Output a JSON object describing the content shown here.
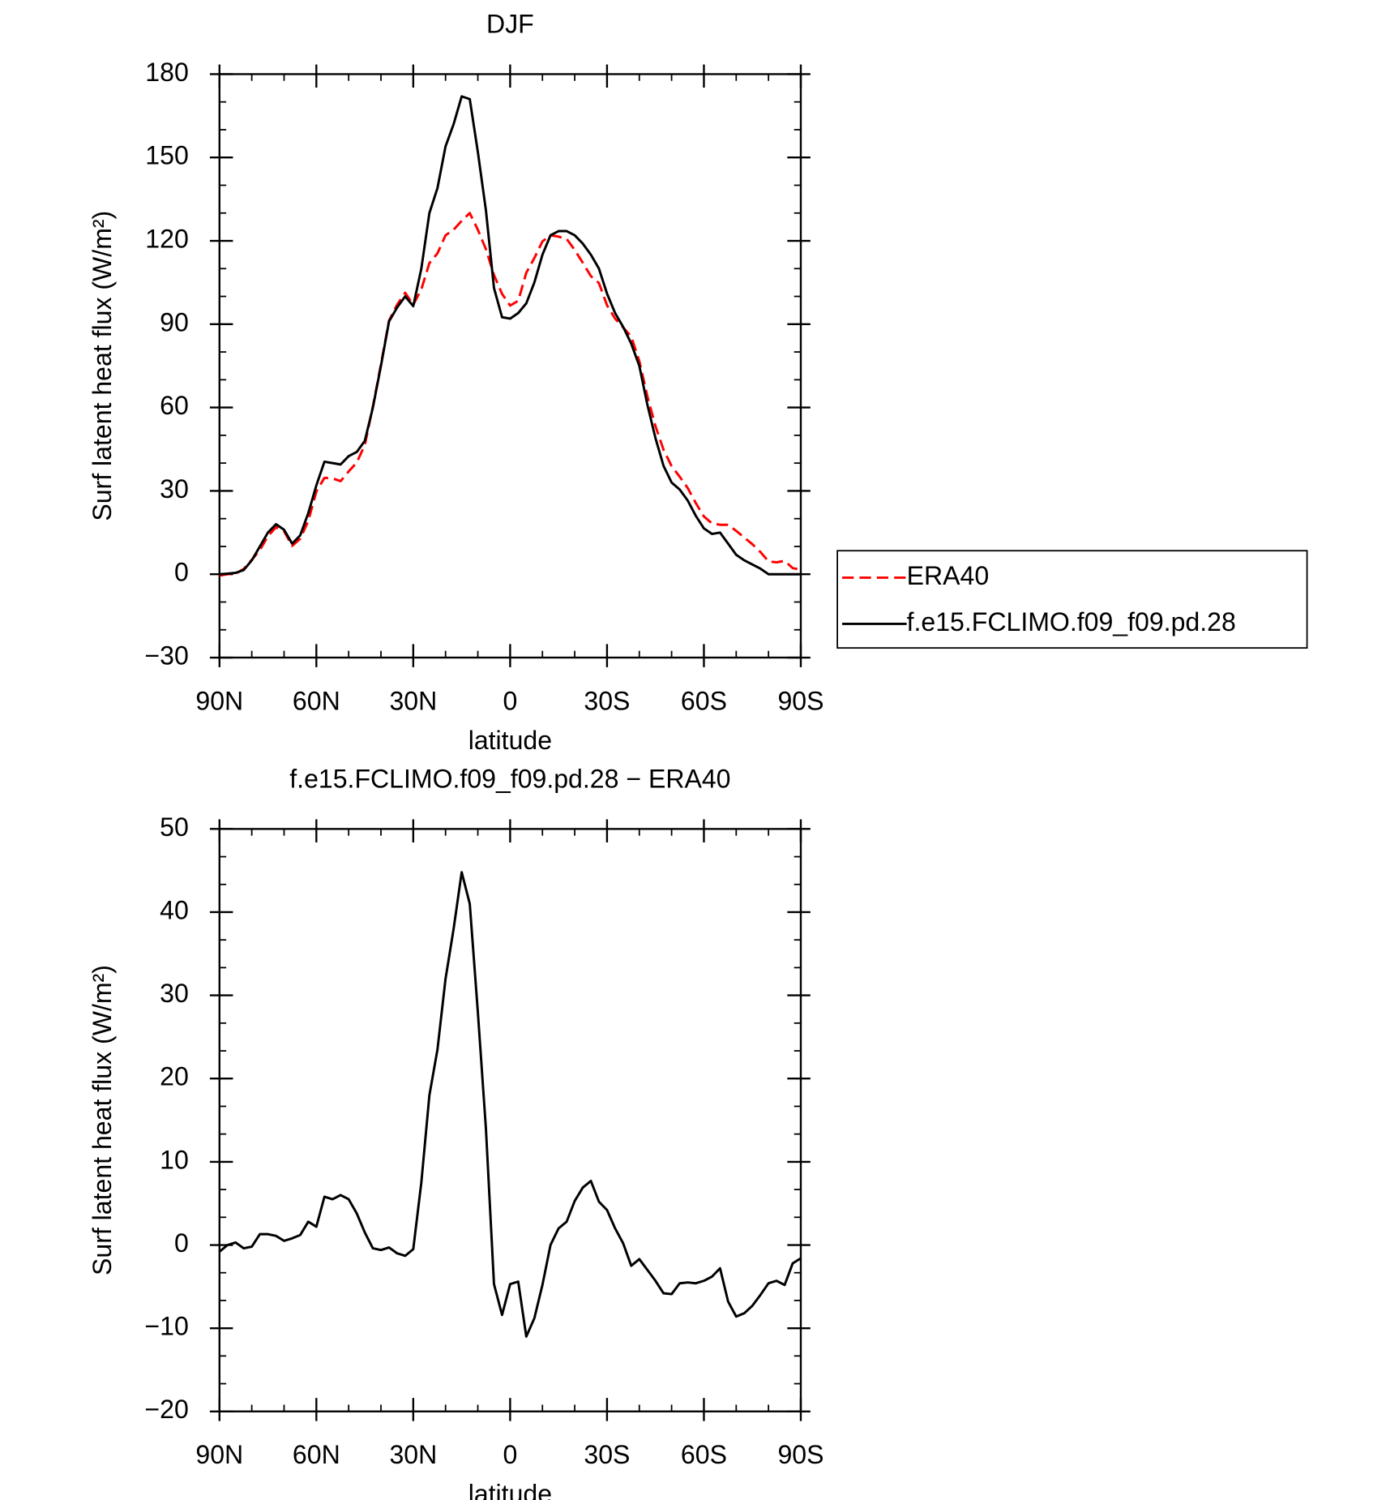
{
  "chart_data": [
    {
      "type": "line",
      "title": "DJF",
      "x_label": "latitude",
      "y_label": "Surf latent heat flux (W/m²)",
      "x": [
        90,
        87.5,
        85,
        82.5,
        80,
        77.5,
        75,
        72.5,
        70,
        67.5,
        65,
        62.5,
        60,
        57.5,
        55,
        52.5,
        50,
        47.5,
        45,
        42.5,
        40,
        37.5,
        35,
        32.5,
        30,
        27.5,
        25,
        22.5,
        20,
        17.5,
        15,
        12.5,
        10,
        7.5,
        5,
        2.5,
        0,
        -2.5,
        -5,
        -7.5,
        -10,
        -12.5,
        -15,
        -17.5,
        -20,
        -22.5,
        -25,
        -27.5,
        -30,
        -32.5,
        -35,
        -37.5,
        -40,
        -42.5,
        -45,
        -47.5,
        -50,
        -52.5,
        -55,
        -57.5,
        -60,
        -62.5,
        -65,
        -67.5,
        -70,
        -72.5,
        -75,
        -77.5,
        -80,
        -82.5,
        -85,
        -87.5,
        -90
      ],
      "series": [
        {
          "name": "ERA40",
          "color": "#ff0000",
          "line_style": "dashed",
          "values": [
            -0.5,
            0,
            0.2,
            1.9,
            5.2,
            8.7,
            13.7,
            16.9,
            15.5,
            10.2,
            12.8,
            19.2,
            29.8,
            34.7,
            34.5,
            33.5,
            37,
            40.2,
            46.5,
            60.4,
            75.6,
            91.3,
            97,
            101.3,
            97,
            102.5,
            112,
            115.5,
            122,
            124,
            127.2,
            130,
            124,
            117,
            107.7,
            100.9,
            96.7,
            98.4,
            108.5,
            113.8,
            119.8,
            122,
            121.5,
            120.7,
            116.7,
            112.1,
            107.3,
            104.8,
            96.8,
            92,
            88.8,
            85.5,
            76.7,
            64,
            53.3,
            44.8,
            38.9,
            35.1,
            31,
            25.6,
            20.8,
            18.3,
            17.8,
            17.8,
            15.6,
            13.2,
            10.8,
            8,
            4.6,
            4.3,
            4.8,
            2.2,
            1.6
          ]
        },
        {
          "name": "f.e15.FCLIMO.f09_f09.pd.28",
          "color": "#000000",
          "line_style": "solid",
          "values": [
            0,
            0.2,
            0.5,
            1.5,
            5,
            10,
            15,
            18,
            16,
            11,
            14,
            22,
            32,
            40.5,
            40,
            39.5,
            42.5,
            44,
            48,
            60,
            75,
            91,
            96,
            100,
            96.5,
            110,
            130,
            139,
            154,
            162,
            172,
            171,
            152,
            131,
            103,
            92.5,
            92,
            94,
            97.5,
            105,
            115,
            122,
            123.5,
            123.5,
            122,
            119,
            115,
            110,
            101,
            94,
            89,
            83,
            75,
            61,
            49,
            39,
            33,
            30.5,
            26.5,
            21,
            16.5,
            14.5,
            15,
            11,
            7,
            5,
            3.5,
            2,
            0,
            0,
            0,
            0,
            0
          ]
        }
      ],
      "xlim": [
        90,
        -90
      ],
      "xticks": [
        {
          "value": 90,
          "label": "90N"
        },
        {
          "value": 60,
          "label": "60N"
        },
        {
          "value": 30,
          "label": "30N"
        },
        0,
        {
          "value": -30,
          "label": "30S"
        },
        {
          "value": -60,
          "label": "60S"
        },
        {
          "value": -90,
          "label": "90S"
        }
      ],
      "ylim": [
        -30,
        180
      ],
      "yticks": [
        {
          "value": -30,
          "label": "−30"
        },
        0,
        30,
        60,
        90,
        120,
        150,
        180
      ],
      "legend": "right"
    },
    {
      "type": "line",
      "title": "f.e15.FCLIMO.f09_f09.pd.28 − ERA40",
      "x_label": "latitude",
      "y_label": "Surf latent heat flux (W/m²)",
      "x": [
        90,
        87.5,
        85,
        82.5,
        80,
        77.5,
        75,
        72.5,
        70,
        67.5,
        65,
        62.5,
        60,
        57.5,
        55,
        52.5,
        50,
        47.5,
        45,
        42.5,
        40,
        37.5,
        35,
        32.5,
        30,
        27.5,
        25,
        22.5,
        20,
        17.5,
        15,
        12.5,
        10,
        7.5,
        5,
        2.5,
        0,
        -2.5,
        -5,
        -7.5,
        -10,
        -12.5,
        -15,
        -17.5,
        -20,
        -22.5,
        -25,
        -27.5,
        -30,
        -32.5,
        -35,
        -37.5,
        -40,
        -42.5,
        -45,
        -47.5,
        -50,
        -52.5,
        -55,
        -57.5,
        -60,
        -62.5,
        -65,
        -67.5,
        -70,
        -72.5,
        -75,
        -77.5,
        -80,
        -82.5,
        -85,
        -87.5,
        -90
      ],
      "values": [
        -0.8,
        0,
        0.3,
        -0.4,
        -0.2,
        1.3,
        1.3,
        1.1,
        0.5,
        0.8,
        1.2,
        2.8,
        2.2,
        5.8,
        5.5,
        6,
        5.5,
        3.8,
        1.5,
        -0.4,
        -0.6,
        -0.3,
        -1,
        -1.3,
        -0.5,
        7.5,
        18,
        23.5,
        32,
        38,
        44.8,
        41,
        28,
        14,
        -4.7,
        -8.4,
        -4.7,
        -4.4,
        -11,
        -8.8,
        -4.8,
        0,
        2,
        2.8,
        5.3,
        6.9,
        7.7,
        5.2,
        4.2,
        2,
        0.2,
        -2.5,
        -1.7,
        -3,
        -4.3,
        -5.8,
        -5.9,
        -4.6,
        -4.5,
        -4.6,
        -4.3,
        -3.8,
        -2.8,
        -6.8,
        -8.6,
        -8.2,
        -7.3,
        -6,
        -4.6,
        -4.3,
        -4.8,
        -2.2,
        -1.6
      ],
      "color": "#000000",
      "xlim": [
        90,
        -90
      ],
      "xticks": [
        {
          "value": 90,
          "label": "90N"
        },
        {
          "value": 60,
          "label": "60N"
        },
        {
          "value": 30,
          "label": "30N"
        },
        0,
        {
          "value": -30,
          "label": "30S"
        },
        {
          "value": -60,
          "label": "60S"
        },
        {
          "value": -90,
          "label": "90S"
        }
      ],
      "ylim": [
        -20,
        50
      ],
      "yticks": [
        {
          "value": -20,
          "label": "−20"
        },
        {
          "value": -10,
          "label": "−10"
        },
        0,
        10,
        20,
        30,
        40,
        50
      ]
    }
  ]
}
